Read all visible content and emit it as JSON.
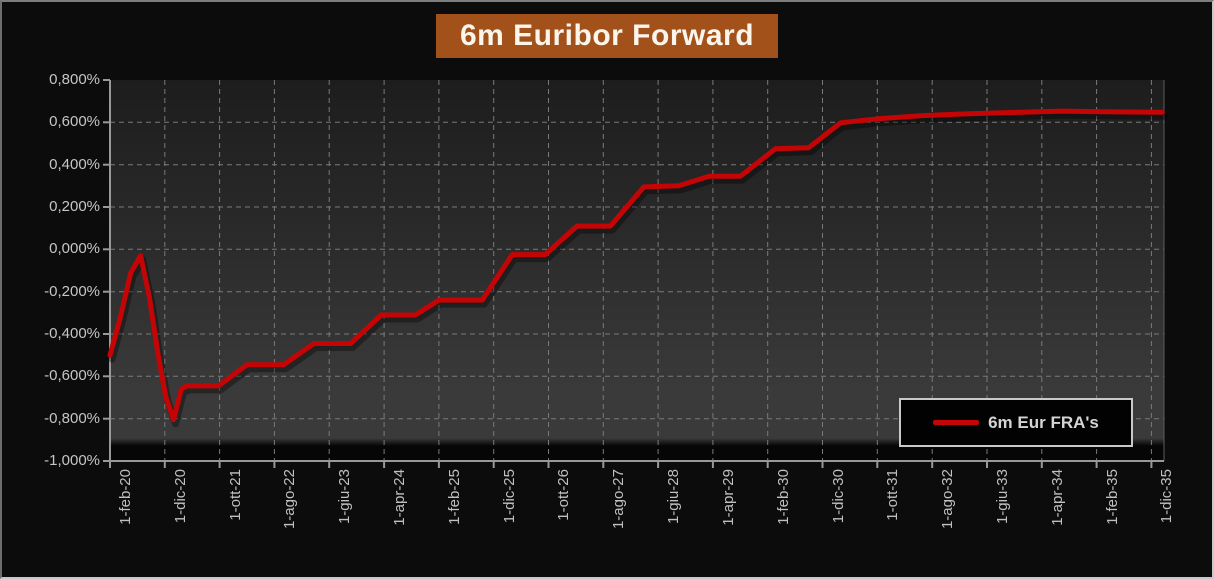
{
  "chart_data": {
    "type": "line",
    "title": "6m Euribor Forward",
    "x_note": "x values are axis tick indices; ticks are 10 months apart, index 0 = 1-feb-20, index 19 = 1-dic-35",
    "x_tick_labels": [
      "1-feb-20",
      "1-dic-20",
      "1-ott-21",
      "1-ago-22",
      "1-giu-23",
      "1-apr-24",
      "1-feb-25",
      "1-dic-25",
      "1-ott-26",
      "1-ago-27",
      "1-giu-28",
      "1-apr-29",
      "1-feb-30",
      "1-dic-30",
      "1-ott-31",
      "1-ago-32",
      "1-giu-33",
      "1-apr-34",
      "1-feb-35",
      "1-dic-35"
    ],
    "y_tick_labels": [
      "0,800%",
      "0,600%",
      "0,400%",
      "0,200%",
      "0,000%",
      "-0,200%",
      "-0,400%",
      "-0,600%",
      "-0,800%",
      "-1,000%"
    ],
    "ylim": [
      -1.0,
      0.8
    ],
    "y_step": 0.2,
    "xlim": [
      0,
      19.23
    ],
    "grid": "dashed gray, horizontal and vertical, on",
    "legend_position": "inside bottom-right",
    "series": [
      {
        "name": "6m Eur FRA's",
        "color": "#c50505",
        "points": [
          [
            0.0,
            -0.5
          ],
          [
            0.18,
            -0.33
          ],
          [
            0.38,
            -0.11
          ],
          [
            0.56,
            -0.03
          ],
          [
            0.72,
            -0.23
          ],
          [
            0.88,
            -0.5
          ],
          [
            1.02,
            -0.7
          ],
          [
            1.16,
            -0.805
          ],
          [
            1.3,
            -0.66
          ],
          [
            1.4,
            -0.645
          ],
          [
            1.98,
            -0.645
          ],
          [
            2.5,
            -0.545
          ],
          [
            3.17,
            -0.545
          ],
          [
            3.72,
            -0.445
          ],
          [
            4.39,
            -0.445
          ],
          [
            4.95,
            -0.31
          ],
          [
            5.57,
            -0.31
          ],
          [
            6.0,
            -0.24
          ],
          [
            6.79,
            -0.24
          ],
          [
            7.34,
            -0.025
          ],
          [
            7.94,
            -0.025
          ],
          [
            8.52,
            0.11
          ],
          [
            9.13,
            0.11
          ],
          [
            9.74,
            0.295
          ],
          [
            10.38,
            0.3
          ],
          [
            10.93,
            0.345
          ],
          [
            11.5,
            0.345
          ],
          [
            12.14,
            0.475
          ],
          [
            12.75,
            0.48
          ],
          [
            13.33,
            0.598
          ],
          [
            14.03,
            0.617
          ],
          [
            14.82,
            0.632
          ],
          [
            15.6,
            0.64
          ],
          [
            16.64,
            0.648
          ],
          [
            17.37,
            0.653
          ],
          [
            18.1,
            0.65
          ],
          [
            19.2,
            0.648
          ]
        ]
      }
    ],
    "colors": {
      "banner_background": "#a3511b",
      "banner_text": "#fbf6ec",
      "series_red": "#c50505",
      "plot_background_top": "#1d1d1d",
      "plot_background_bottom": "#3a3a3a",
      "plot_bottom_band": "#060606",
      "gridline": "#7a7a7a",
      "axis_labels": "#c6c6c6",
      "legend_border": "#c9c9c9"
    }
  }
}
